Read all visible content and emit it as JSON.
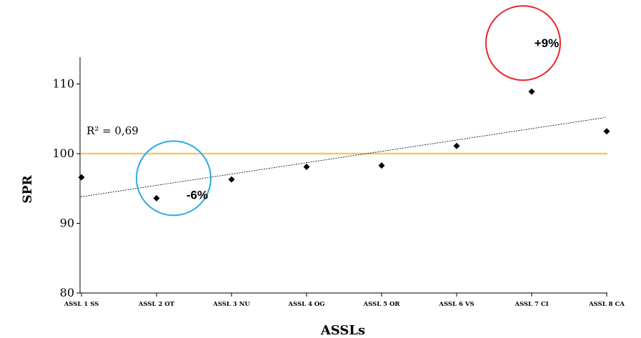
{
  "chart_data": {
    "type": "scatter",
    "categories": [
      "ASSL 1 SS",
      "ASSL 2 OT",
      "ASSL 3 NU",
      "ASSL 4 OG",
      "ASSL 5 OR",
      "ASSL 6 VS",
      "ASSL 7 CI",
      "ASSL 8 CA"
    ],
    "values": [
      96.6,
      93.6,
      96.3,
      98.1,
      98.3,
      101.1,
      108.9,
      103.2
    ],
    "xlabel": "ASSLs",
    "ylabel": "SPR",
    "ylim": [
      80,
      114
    ],
    "yticks": [
      80,
      90,
      100,
      110
    ],
    "reference_line": {
      "y": 100,
      "color": "#f2c96b"
    },
    "trendline": {
      "type": "linear",
      "start_y": 93.8,
      "end_y": 105.2,
      "r2_label": "R² = 0,69"
    },
    "annotations": [
      {
        "text": "-6%",
        "category": "ASSL 2 OT",
        "circle_color": "#29abe2"
      },
      {
        "text": "+9%",
        "category": "ASSL 7 CI",
        "circle_color": "#e8262a"
      }
    ],
    "grid": false,
    "legend": "none"
  }
}
